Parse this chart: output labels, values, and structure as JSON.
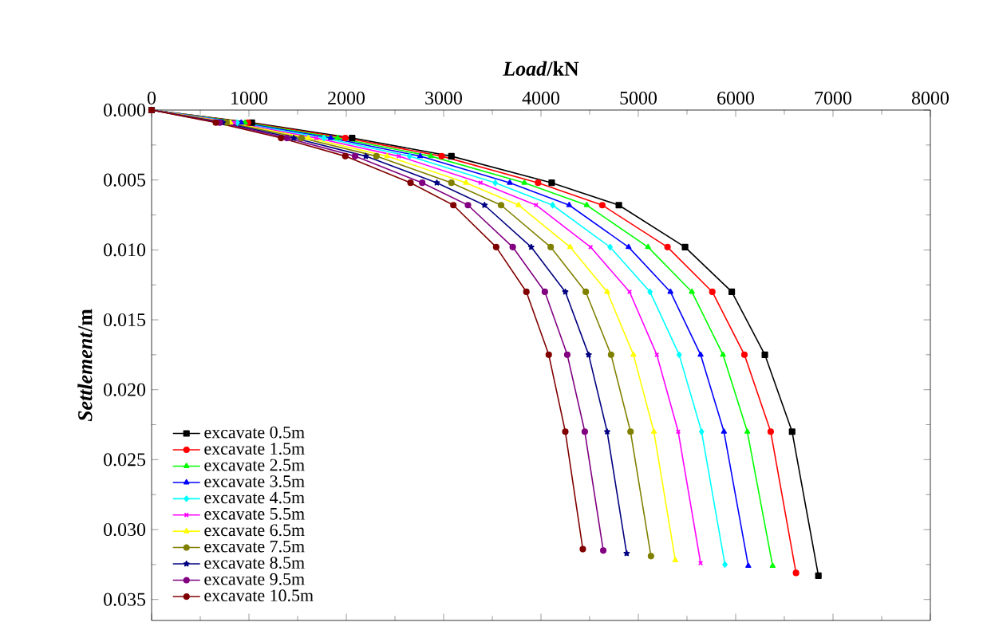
{
  "chart_data": {
    "type": "line",
    "xlabel": "*Load*/kN",
    "ylabel": "*Settlement*/m",
    "xlim": [
      0,
      8000
    ],
    "xticks": [
      0,
      1000,
      2000,
      3000,
      4000,
      5000,
      6000,
      7000,
      8000
    ],
    "ylim": [
      0.0365,
      0
    ],
    "yticks": [
      {
        "value": 0,
        "label": "0.000"
      },
      {
        "value": 0.005,
        "label": "0.005"
      },
      {
        "value": 0.01,
        "label": "0.010"
      },
      {
        "value": 0.015,
        "label": "0.015"
      },
      {
        "value": 0.02,
        "label": "0.020"
      },
      {
        "value": 0.025,
        "label": "0.025"
      },
      {
        "value": 0.03,
        "label": "0.030"
      },
      {
        "value": 0.035,
        "label": "0.035"
      }
    ],
    "legend": "bottom left",
    "line_style": "solid",
    "series": [
      {
        "name": "excavate 0.5m",
        "color": "#000000",
        "marker": "square",
        "x": [
          0,
          1030,
          2060,
          3080,
          4110,
          4800,
          5480,
          5960,
          6300,
          6580,
          6850
        ],
        "values": [
          0,
          0.0009,
          0.002,
          0.0033,
          0.0052,
          0.0068,
          0.0098,
          0.013,
          0.0175,
          0.023,
          0.0333
        ]
      },
      {
        "name": "excavate 1.5m",
        "color": "#ff0000",
        "marker": "circle",
        "x": [
          0,
          990,
          1990,
          2980,
          3970,
          4630,
          5300,
          5760,
          6090,
          6360,
          6620
        ],
        "values": [
          0,
          0.0009,
          0.002,
          0.0033,
          0.0052,
          0.0068,
          0.0098,
          0.013,
          0.0175,
          0.023,
          0.0331
        ]
      },
      {
        "name": "excavate 2.5m",
        "color": "#00ff00",
        "marker": "triangle",
        "x": [
          0,
          960,
          1910,
          2870,
          3830,
          4470,
          5100,
          5550,
          5870,
          6120,
          6380
        ],
        "values": [
          0,
          0.0009,
          0.002,
          0.0033,
          0.0052,
          0.0068,
          0.0098,
          0.013,
          0.0175,
          0.023,
          0.0326
        ]
      },
      {
        "name": "excavate 3.5m",
        "color": "#0000ff",
        "marker": "triangle",
        "x": [
          0,
          920,
          1840,
          2760,
          3680,
          4290,
          4900,
          5330,
          5640,
          5880,
          6130
        ],
        "values": [
          0,
          0.0009,
          0.002,
          0.0033,
          0.0052,
          0.0068,
          0.0098,
          0.013,
          0.0175,
          0.023,
          0.0326
        ]
      },
      {
        "name": "excavate 4.5m",
        "color": "#00ffff",
        "marker": "diamond",
        "x": [
          0,
          880,
          1770,
          2650,
          3530,
          4120,
          4710,
          5120,
          5420,
          5650,
          5890
        ],
        "values": [
          0,
          0.0009,
          0.002,
          0.0033,
          0.0052,
          0.0068,
          0.0098,
          0.013,
          0.0175,
          0.023,
          0.0325
        ]
      },
      {
        "name": "excavate 5.5m",
        "color": "#ff00ff",
        "marker": "cross",
        "x": [
          0,
          850,
          1690,
          2540,
          3380,
          3950,
          4510,
          4910,
          5190,
          5410,
          5640
        ],
        "values": [
          0,
          0.0009,
          0.002,
          0.0033,
          0.0052,
          0.0068,
          0.0098,
          0.013,
          0.0175,
          0.023,
          0.0324
        ]
      },
      {
        "name": "excavate 6.5m",
        "color": "#ffff00",
        "marker": "triangle",
        "x": [
          0,
          810,
          1610,
          2420,
          3230,
          3770,
          4300,
          4680,
          4950,
          5160,
          5380
        ],
        "values": [
          0,
          0.0009,
          0.002,
          0.0033,
          0.0052,
          0.0068,
          0.0098,
          0.013,
          0.0175,
          0.023,
          0.0322
        ]
      },
      {
        "name": "excavate 7.5m",
        "color": "#808000",
        "marker": "circle",
        "x": [
          0,
          770,
          1540,
          2310,
          3080,
          3590,
          4100,
          4460,
          4720,
          4920,
          5130
        ],
        "values": [
          0,
          0.0009,
          0.002,
          0.0033,
          0.0052,
          0.0068,
          0.0098,
          0.013,
          0.0175,
          0.023,
          0.0319
        ]
      },
      {
        "name": "excavate 8.5m",
        "color": "#000080",
        "marker": "star",
        "x": [
          0,
          730,
          1460,
          2200,
          2930,
          3420,
          3900,
          4250,
          4490,
          4680,
          4880
        ],
        "values": [
          0,
          0.0009,
          0.002,
          0.0033,
          0.0052,
          0.0068,
          0.0098,
          0.013,
          0.0175,
          0.023,
          0.0317
        ]
      },
      {
        "name": "excavate 9.5m",
        "color": "#800080",
        "marker": "circle",
        "x": [
          0,
          700,
          1390,
          2090,
          2780,
          3250,
          3710,
          4040,
          4270,
          4450,
          4640
        ],
        "values": [
          0,
          0.0009,
          0.002,
          0.0033,
          0.0052,
          0.0068,
          0.0098,
          0.013,
          0.0175,
          0.023,
          0.0315
        ]
      },
      {
        "name": "excavate 10.5m",
        "color": "#800000",
        "marker": "circle",
        "x": [
          0,
          660,
          1330,
          1990,
          2660,
          3100,
          3540,
          3850,
          4080,
          4250,
          4430
        ],
        "values": [
          0,
          0.0009,
          0.002,
          0.0033,
          0.0052,
          0.0068,
          0.0098,
          0.013,
          0.0175,
          0.023,
          0.0314
        ]
      }
    ]
  }
}
